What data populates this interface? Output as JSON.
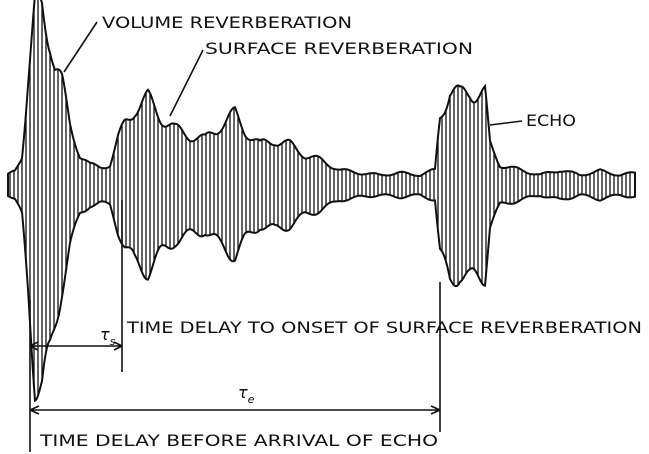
{
  "labels": {
    "volume": "VOLUME REVERBERATION",
    "surface": "SURFACE REVERBERATION",
    "echo": "ECHO",
    "tau_s": {
      "symbol": "τ",
      "subscript": "s"
    },
    "onset": "TIME DELAY TO ONSET OF SURFACE REVERBERATION",
    "tau_e": {
      "symbol": "τ",
      "subscript": "e"
    },
    "arrival": "TIME DELAY BEFORE ARRIVAL OF ECHO"
  }
}
